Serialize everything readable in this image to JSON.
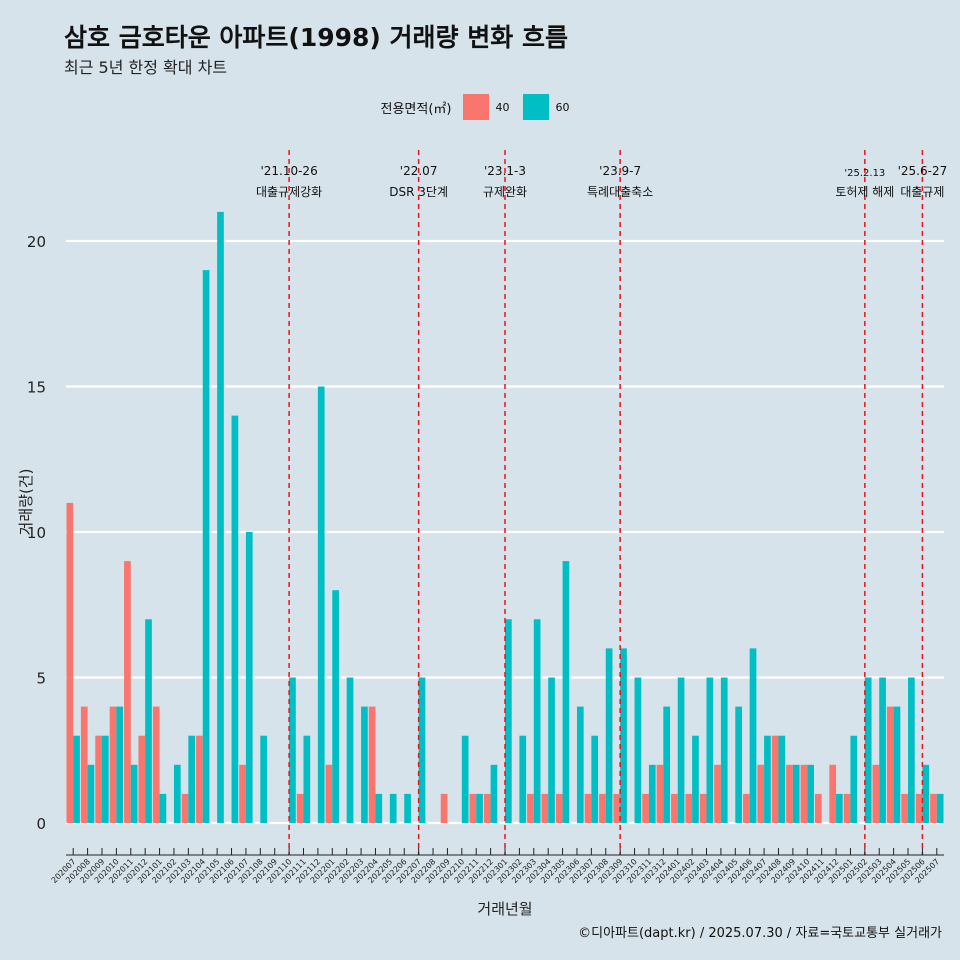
{
  "title": "삼호 금호타운 아파트(1998) 거래량 변화 흐름",
  "subtitle": "최근 5년 한정 확대 차트",
  "caption": "©디아파트(dapt.kr) / 2025.07.30 / 자료=국토교통부 실거래가",
  "legend": {
    "title": "전용면적(㎡)",
    "items": [
      {
        "label": "40",
        "color": "#f8766d"
      },
      {
        "label": "60",
        "color": "#00bfc4"
      }
    ]
  },
  "chart_data": {
    "type": "bar",
    "xlabel": "거래년월",
    "ylabel": "거래량(건)",
    "ylim": [
      0,
      23
    ],
    "yticks": [
      0,
      5,
      10,
      15,
      20
    ],
    "categories": [
      "202007",
      "202008",
      "202009",
      "202010",
      "202011",
      "202012",
      "202101",
      "202102",
      "202103",
      "202104",
      "202105",
      "202106",
      "202107",
      "202108",
      "202109",
      "202110",
      "202111",
      "202112",
      "202201",
      "202202",
      "202203",
      "202204",
      "202205",
      "202206",
      "202207",
      "202208",
      "202209",
      "202210",
      "202211",
      "202212",
      "202301",
      "202302",
      "202303",
      "202304",
      "202305",
      "202306",
      "202307",
      "202308",
      "202309",
      "202310",
      "202311",
      "202312",
      "202401",
      "202402",
      "202403",
      "202404",
      "202405",
      "202406",
      "202407",
      "202408",
      "202409",
      "202410",
      "202411",
      "202412",
      "202501",
      "202502",
      "202503",
      "202504",
      "202505",
      "202506",
      "202507"
    ],
    "series": [
      {
        "name": "40",
        "color": "#f8766d",
        "values": [
          11,
          4,
          3,
          4,
          9,
          3,
          4,
          0,
          1,
          3,
          0,
          0,
          2,
          0,
          0,
          0,
          1,
          0,
          2,
          0,
          0,
          4,
          0,
          0,
          0,
          0,
          1,
          0,
          1,
          1,
          0,
          0,
          1,
          1,
          1,
          0,
          1,
          1,
          1,
          0,
          1,
          2,
          1,
          1,
          1,
          2,
          0,
          1,
          2,
          3,
          2,
          2,
          1,
          2,
          1,
          0,
          2,
          4,
          1,
          1,
          1
        ]
      },
      {
        "name": "60",
        "color": "#00bfc4",
        "values": [
          3,
          2,
          3,
          4,
          2,
          7,
          1,
          2,
          3,
          19,
          21,
          14,
          10,
          3,
          0,
          5,
          3,
          15,
          8,
          5,
          4,
          1,
          1,
          1,
          5,
          0,
          0,
          3,
          1,
          2,
          7,
          3,
          7,
          5,
          9,
          4,
          3,
          6,
          6,
          5,
          2,
          4,
          5,
          3,
          5,
          5,
          4,
          6,
          3,
          3,
          2,
          2,
          0,
          1,
          3,
          5,
          5,
          4,
          5,
          2,
          1
        ]
      }
    ],
    "events": [
      {
        "date": "'21.10-26",
        "label": "대출규제강화",
        "category": "202110"
      },
      {
        "date": "'22.07",
        "label": "DSR 3단계",
        "category": "202207"
      },
      {
        "date": "'23.1-3",
        "label": "규제완화",
        "category": "202301"
      },
      {
        "date": "'23.9-7",
        "label": "특례대출축소",
        "category": "202309"
      },
      {
        "date": "'25.2.13",
        "label": "토허제 해제",
        "category": "202502"
      },
      {
        "date": "'25.6-27",
        "label": "대출규제",
        "category": "202506"
      }
    ]
  }
}
